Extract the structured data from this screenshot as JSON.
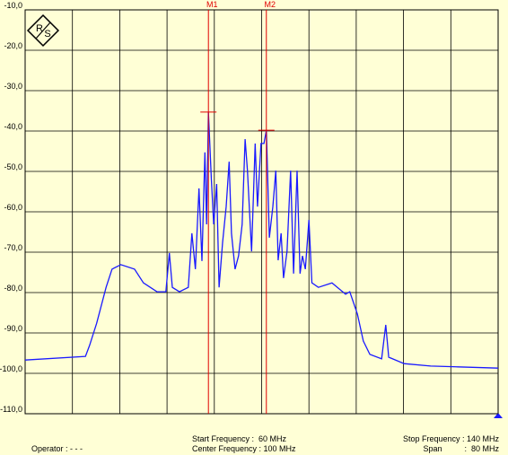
{
  "chart_data": {
    "type": "line",
    "logo": [
      "R",
      "S"
    ],
    "x": [
      60.0,
      70.2,
      70.9,
      72.1,
      73.7,
      74.7,
      76.2,
      78.5,
      80.0,
      82.3,
      83.8,
      84.4,
      84.9,
      86.1,
      87.6,
      88.2,
      88.8,
      89.4,
      89.9,
      90.4,
      90.7,
      91.0,
      91.5,
      91.9,
      92.4,
      92.8,
      93.4,
      94.0,
      94.5,
      94.9,
      95.5,
      96.1,
      96.7,
      97.2,
      97.6,
      98.3,
      98.9,
      99.3,
      99.9,
      100.4,
      100.8,
      101.3,
      101.9,
      102.4,
      102.8,
      103.3,
      103.7,
      104.3,
      104.9,
      105.4,
      106.0,
      106.5,
      106.9,
      107.4,
      108.0,
      108.5,
      109.6,
      111.9,
      114.2,
      114.9,
      116.2,
      117.2,
      118.3,
      120.3,
      121.0,
      121.5,
      124.1,
      128.6,
      133.2,
      140.0
    ],
    "series": [
      {
        "color": "#1a1aff",
        "values": [
          -96.7,
          -95.8,
          -93.1,
          -87.6,
          -78.7,
          -74.2,
          -73.1,
          -74.2,
          -77.6,
          -79.8,
          -79.8,
          -70.2,
          -78.7,
          -79.8,
          -78.7,
          -65.3,
          -74.2,
          -54.2,
          -72.2,
          -45.3,
          -63.1,
          -35.3,
          -52.0,
          -63.1,
          -53.1,
          -78.7,
          -67.6,
          -58.7,
          -47.6,
          -65.3,
          -74.2,
          -70.9,
          -63.1,
          -42.0,
          -49.8,
          -69.8,
          -43.1,
          -58.7,
          -43.1,
          -43.1,
          -39.8,
          -66.4,
          -58.7,
          -49.8,
          -72.0,
          -65.3,
          -76.4,
          -69.8,
          -49.8,
          -75.3,
          -49.8,
          -75.3,
          -70.9,
          -74.2,
          -62.0,
          -77.6,
          -78.7,
          -77.6,
          -80.4,
          -79.8,
          -85.3,
          -92.0,
          -95.3,
          -96.4,
          -88.0,
          -96.0,
          -97.6,
          -98.2,
          -98.4,
          -98.7
        ]
      }
    ],
    "xlim": [
      60,
      140
    ],
    "xticks": [
      60,
      68,
      76,
      84,
      92,
      100,
      108,
      116,
      124,
      132,
      140
    ],
    "ylim": [
      -110,
      -10
    ],
    "yticks": [
      {
        "value": -10,
        "label": "-10,0"
      },
      {
        "value": -20,
        "label": "-20,0"
      },
      {
        "value": -30,
        "label": "-30,0"
      },
      {
        "value": -40,
        "label": "-40,0"
      },
      {
        "value": -50,
        "label": "-50,0"
      },
      {
        "value": -60,
        "label": "-60,0"
      },
      {
        "value": -70,
        "label": "-70,0"
      },
      {
        "value": -80,
        "label": "-80,0"
      },
      {
        "value": -90,
        "label": "-90,0"
      },
      {
        "value": -100,
        "label": "-100,0"
      },
      {
        "value": -110,
        "label": "-110,0"
      }
    ],
    "grid": true,
    "markers": [
      {
        "label": "M1",
        "x": 91.0,
        "y": -35.3,
        "color": "#e00000"
      },
      {
        "label": "M2",
        "x": 100.8,
        "y": -39.8,
        "color": "#e00000"
      }
    ],
    "info": {
      "start": "Start Frequency :  60 MHz",
      "center": "Center Frequency : 100 MHz",
      "stop": "Stop Frequency : 140 MHz",
      "span": "Span          :  80 MHz",
      "operator": "Operator : - - -"
    }
  }
}
